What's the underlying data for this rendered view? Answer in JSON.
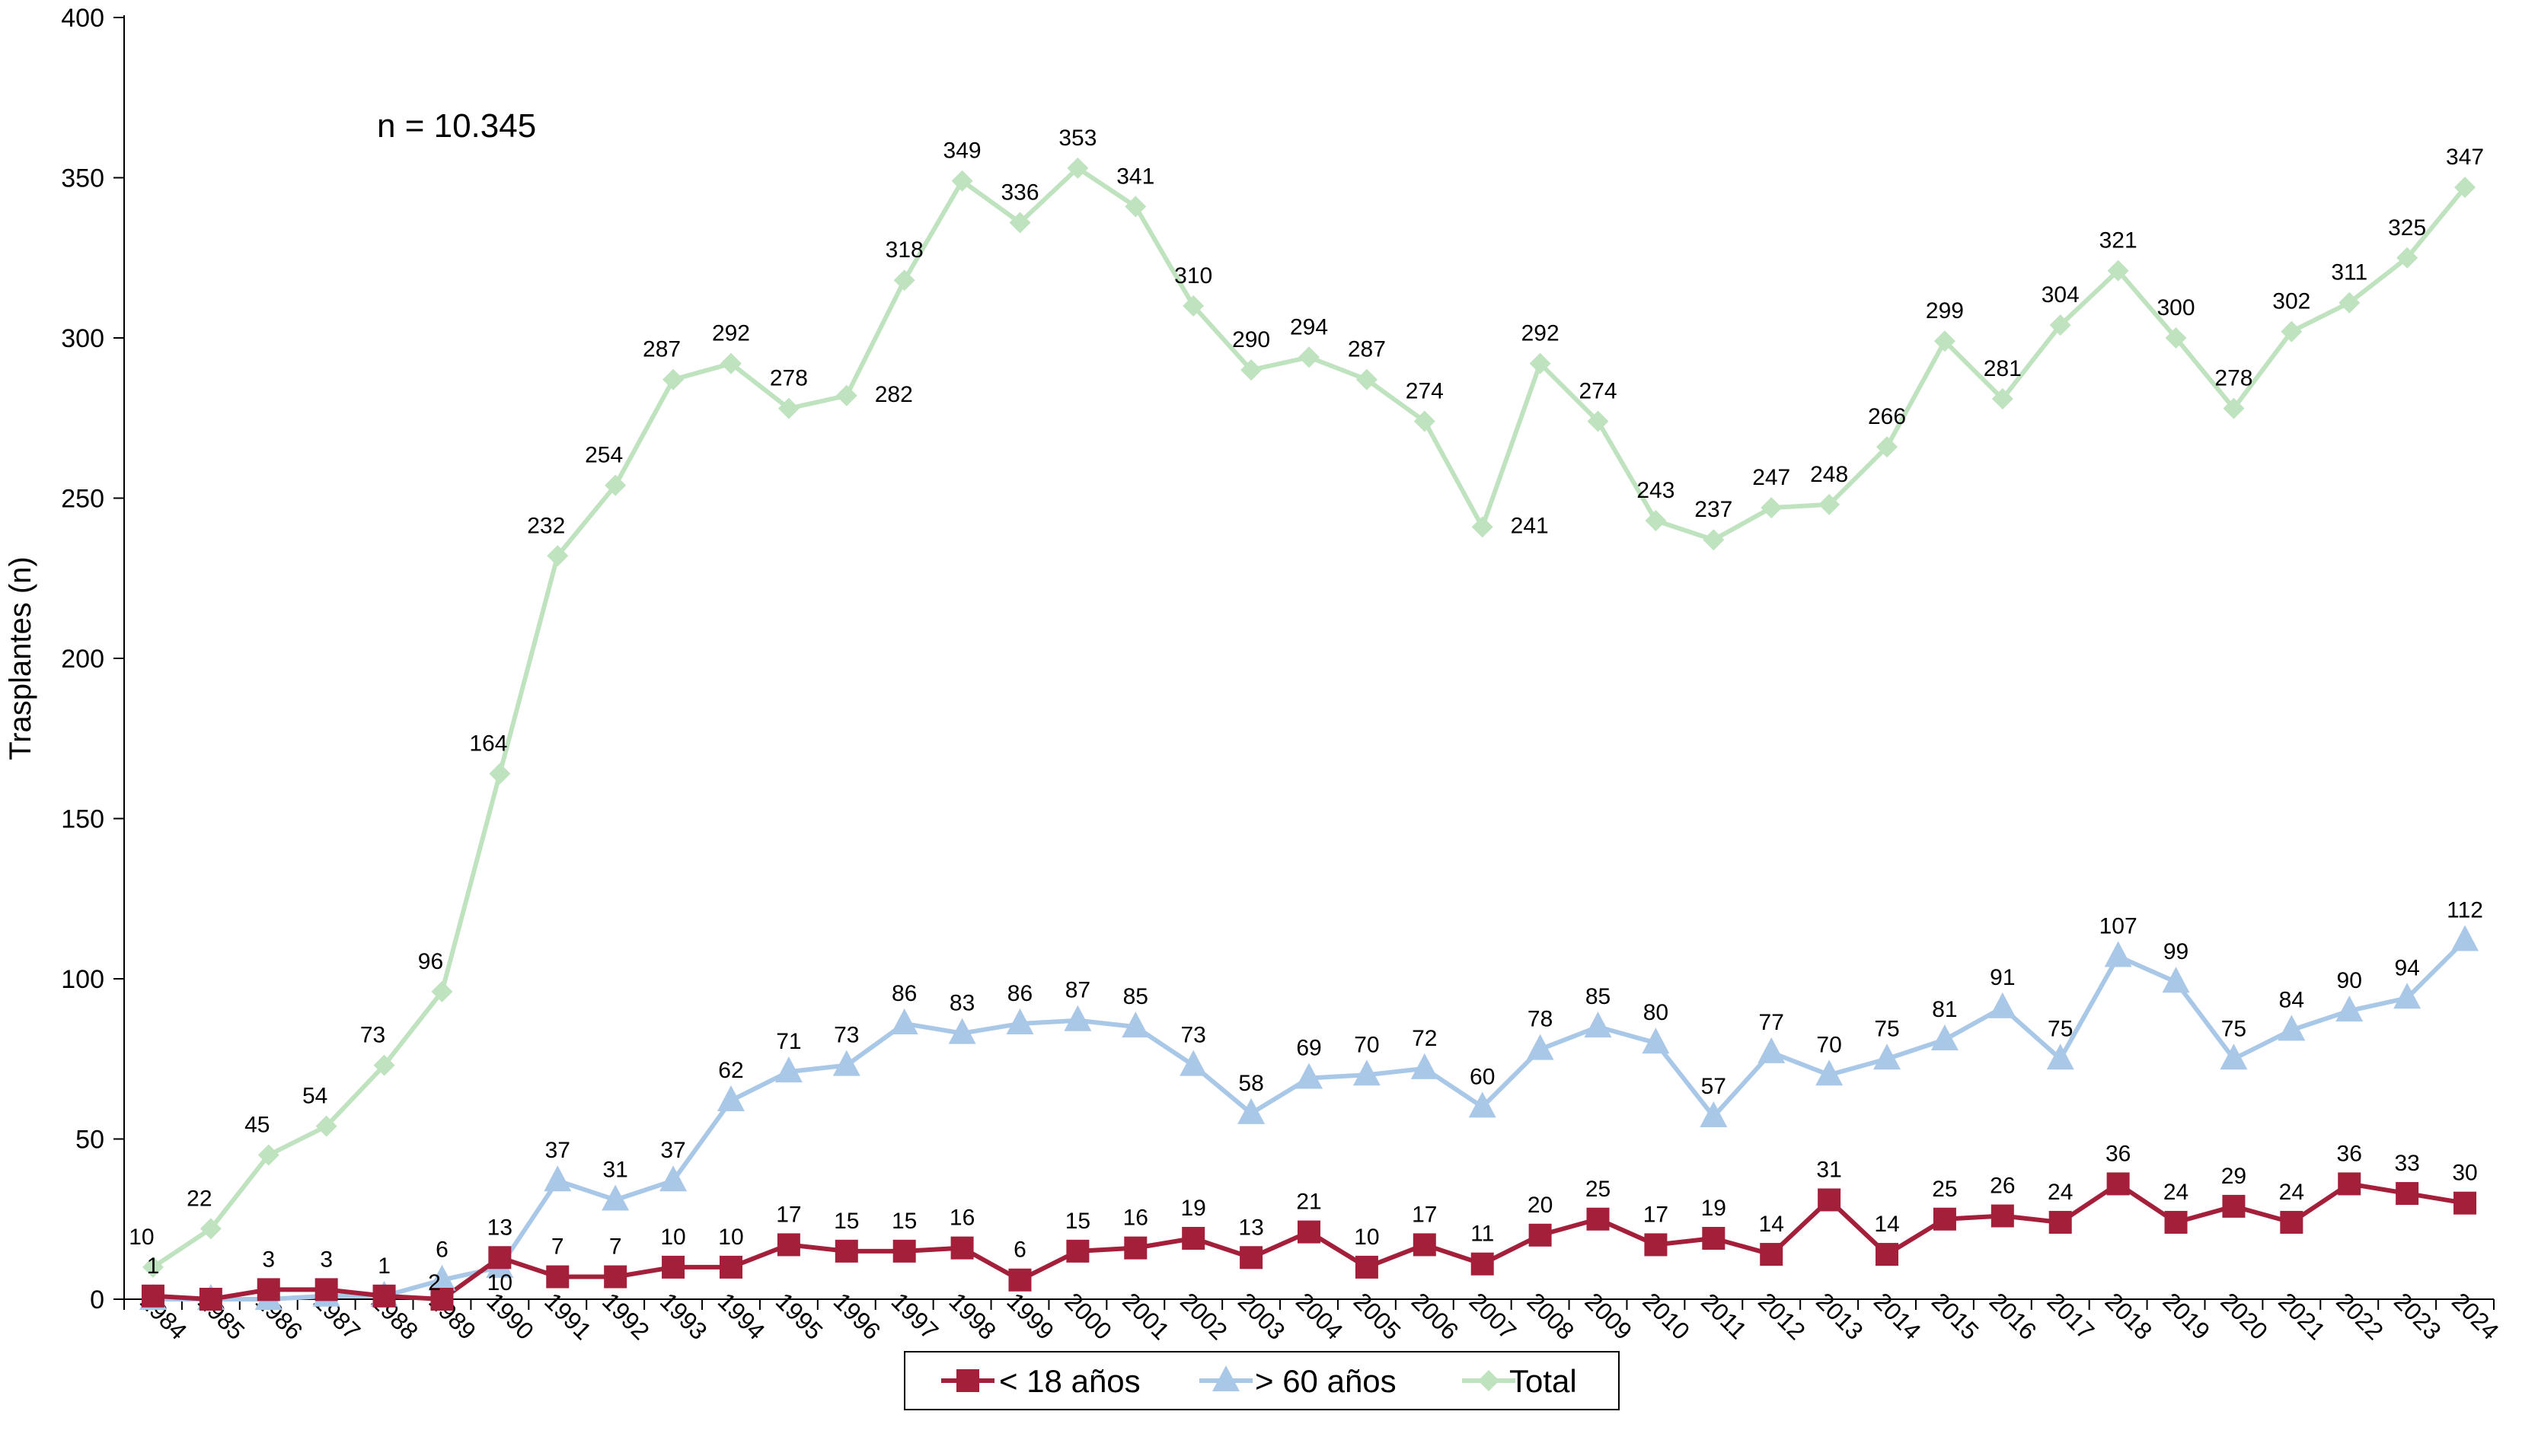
{
  "chart_data": {
    "type": "line",
    "ylabel": "Trasplantes (n)",
    "xlabel": "",
    "ylim": [
      0,
      400
    ],
    "yticks": [
      0,
      50,
      100,
      150,
      200,
      250,
      300,
      350,
      400
    ],
    "annotation": "n = 10.345",
    "legend_position": "bottom-center",
    "grid": false,
    "categories": [
      "1984",
      "1985",
      "1986",
      "1987",
      "1988",
      "1989",
      "1990",
      "1991",
      "1992",
      "1993",
      "1994",
      "1995",
      "1996",
      "1997",
      "1998",
      "1999",
      "2000",
      "2001",
      "2002",
      "2003",
      "2004",
      "2005",
      "2006",
      "2007",
      "2008",
      "2009",
      "2010",
      "2011",
      "2012",
      "2013",
      "2014",
      "2015",
      "2016",
      "2017",
      "2018",
      "2019",
      "2020",
      "2021",
      "2022",
      "2023",
      "2024"
    ],
    "series": [
      {
        "name": "< 18 años",
        "color": "#a31f3a",
        "marker": "square",
        "values": [
          1,
          0,
          3,
          3,
          1,
          0,
          13,
          7,
          7,
          10,
          10,
          17,
          15,
          15,
          16,
          6,
          15,
          16,
          19,
          13,
          21,
          10,
          17,
          11,
          20,
          25,
          17,
          19,
          14,
          31,
          14,
          25,
          26,
          24,
          36,
          24,
          29,
          24,
          36,
          33,
          30
        ],
        "labels": [
          "1",
          "",
          "3",
          "3",
          "1",
          "",
          "13",
          "7",
          "7",
          "10",
          "10",
          "17",
          "15",
          "15",
          "16",
          "6",
          "15",
          "16",
          "19",
          "13",
          "21",
          "10",
          "17",
          "11",
          "20",
          "25",
          "17",
          "19",
          "14",
          "31",
          "14",
          "25",
          "26",
          "24",
          "36",
          "24",
          "29",
          "24",
          "36",
          "33",
          "30"
        ]
      },
      {
        "name": "> 60 años",
        "color": "#a9c8e8",
        "marker": "triangle",
        "values": [
          0,
          0,
          0,
          1,
          1,
          6,
          10,
          37,
          31,
          37,
          62,
          71,
          73,
          86,
          83,
          86,
          87,
          85,
          73,
          58,
          69,
          70,
          72,
          60,
          78,
          85,
          80,
          57,
          77,
          70,
          75,
          81,
          91,
          75,
          107,
          99,
          75,
          84,
          90,
          94,
          112
        ],
        "labels": [
          "",
          "",
          "",
          "",
          "",
          "6",
          "10",
          "37",
          "31",
          "37",
          "62",
          "71",
          "73",
          "86",
          "83",
          "86",
          "87",
          "85",
          "73",
          "58",
          "69",
          "70",
          "72",
          "60",
          "78",
          "85",
          "80",
          "57",
          "77",
          "70",
          "75",
          "81",
          "91",
          "75",
          "107",
          "99",
          "75",
          "84",
          "90",
          "94",
          "112"
        ]
      },
      {
        "name": "Total",
        "color": "#bfe2bf",
        "marker": "diamond",
        "values": [
          10,
          22,
          45,
          54,
          73,
          96,
          164,
          232,
          254,
          287,
          292,
          278,
          282,
          318,
          349,
          336,
          353,
          341,
          310,
          290,
          294,
          287,
          274,
          241,
          292,
          274,
          243,
          237,
          247,
          248,
          266,
          299,
          281,
          304,
          321,
          300,
          278,
          302,
          311,
          325,
          347
        ],
        "labels": [
          "10",
          "22",
          "45",
          "54",
          "73",
          "96",
          "164",
          "232",
          "254",
          "287",
          "292",
          "278",
          "282",
          "318",
          "349",
          "336",
          "353",
          "341",
          "310",
          "290",
          "294",
          "287",
          "274",
          "241",
          "292",
          "274",
          "243",
          "237",
          "247",
          "248",
          "266",
          "299",
          "281",
          "304",
          "321",
          "300",
          "278",
          "302",
          "311",
          "325",
          "347"
        ]
      }
    ],
    "extra_labels": [
      "2"
    ]
  }
}
